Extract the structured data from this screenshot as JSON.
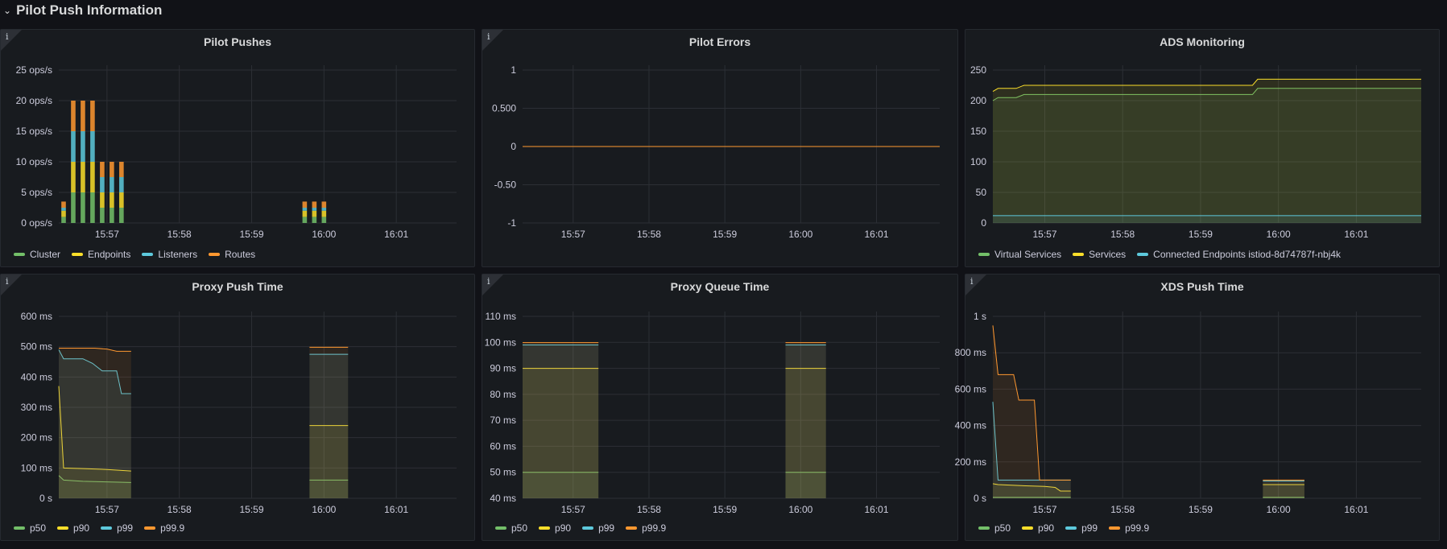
{
  "row": {
    "title": "Pilot Push Information",
    "chevron": "⌄"
  },
  "panels": [
    {
      "title": "Pilot Pushes",
      "info": "i",
      "yticks": [
        "25 ops/s",
        "20 ops/s",
        "15 ops/s",
        "10 ops/s",
        "5 ops/s",
        "0 ops/s"
      ],
      "xticks": [
        "15:57",
        "15:58",
        "15:59",
        "16:00",
        "16:01"
      ],
      "legend": [
        {
          "name": "Cluster",
          "color": "#73bf69"
        },
        {
          "name": "Endpoints",
          "color": "#fade2a"
        },
        {
          "name": "Listeners",
          "color": "#5dc9dc"
        },
        {
          "name": "Routes",
          "color": "#ff9830"
        }
      ]
    },
    {
      "title": "Pilot Errors",
      "info": "i",
      "yticks": [
        "1",
        "0.500",
        "0",
        "-0.50",
        "-1"
      ],
      "xticks": [
        "15:57",
        "15:58",
        "15:59",
        "16:00",
        "16:01"
      ],
      "legend": []
    },
    {
      "title": "ADS Monitoring",
      "info": "",
      "yticks": [
        "250",
        "200",
        "150",
        "100",
        "50",
        "0"
      ],
      "xticks": [
        "15:57",
        "15:58",
        "15:59",
        "16:00",
        "16:01"
      ],
      "legend": [
        {
          "name": "Virtual Services",
          "color": "#73bf69"
        },
        {
          "name": "Services",
          "color": "#fade2a"
        },
        {
          "name": "Connected Endpoints istiod-8d74787f-nbj4k",
          "color": "#5dc9dc"
        }
      ]
    },
    {
      "title": "Proxy Push Time",
      "info": "i",
      "yticks": [
        "600 ms",
        "500 ms",
        "400 ms",
        "300 ms",
        "200 ms",
        "100 ms",
        "0 s"
      ],
      "xticks": [
        "15:57",
        "15:58",
        "15:59",
        "16:00",
        "16:01"
      ],
      "legend": [
        {
          "name": "p50",
          "color": "#73bf69"
        },
        {
          "name": "p90",
          "color": "#fade2a"
        },
        {
          "name": "p99",
          "color": "#5dc9dc"
        },
        {
          "name": "p99.9",
          "color": "#ff9830"
        }
      ]
    },
    {
      "title": "Proxy Queue Time",
      "info": "i",
      "yticks": [
        "110 ms",
        "100 ms",
        "90 ms",
        "80 ms",
        "70 ms",
        "60 ms",
        "50 ms",
        "40 ms"
      ],
      "xticks": [
        "15:57",
        "15:58",
        "15:59",
        "16:00",
        "16:01"
      ],
      "legend": [
        {
          "name": "p50",
          "color": "#73bf69"
        },
        {
          "name": "p90",
          "color": "#fade2a"
        },
        {
          "name": "p99",
          "color": "#5dc9dc"
        },
        {
          "name": "p99.9",
          "color": "#ff9830"
        }
      ]
    },
    {
      "title": "XDS Push Time",
      "info": "i",
      "yticks": [
        "1 s",
        "800 ms",
        "600 ms",
        "400 ms",
        "200 ms",
        "0 s"
      ],
      "xticks": [
        "15:57",
        "15:58",
        "15:59",
        "16:00",
        "16:01"
      ],
      "legend": [
        {
          "name": "p50",
          "color": "#73bf69"
        },
        {
          "name": "p90",
          "color": "#fade2a"
        },
        {
          "name": "p99",
          "color": "#5dc9dc"
        },
        {
          "name": "p99.9",
          "color": "#ff9830"
        }
      ]
    }
  ],
  "chart_data": [
    {
      "type": "bar",
      "title": "Pilot Pushes",
      "ylim": [
        0,
        25
      ],
      "stack": true,
      "bars": [
        {
          "x": "15:56:24",
          "values": {
            "Cluster": 1,
            "Endpoints": 1,
            "Listeners": 0.5,
            "Routes": 1
          }
        },
        {
          "x": "15:56:32",
          "values": {
            "Cluster": 5,
            "Endpoints": 5,
            "Listeners": 5,
            "Routes": 5
          }
        },
        {
          "x": "15:56:40",
          "values": {
            "Cluster": 5,
            "Endpoints": 5,
            "Listeners": 5,
            "Routes": 5
          }
        },
        {
          "x": "15:56:48",
          "values": {
            "Cluster": 5,
            "Endpoints": 5,
            "Listeners": 5,
            "Routes": 5
          }
        },
        {
          "x": "15:56:56",
          "values": {
            "Cluster": 2.5,
            "Endpoints": 2.5,
            "Listeners": 2.5,
            "Routes": 2.5
          }
        },
        {
          "x": "15:57:04",
          "values": {
            "Cluster": 2.5,
            "Endpoints": 2.5,
            "Listeners": 2.5,
            "Routes": 2.5
          }
        },
        {
          "x": "15:57:12",
          "values": {
            "Cluster": 2.5,
            "Endpoints": 2.5,
            "Listeners": 2.5,
            "Routes": 2.5
          }
        },
        {
          "x": "15:59:44",
          "values": {
            "Cluster": 1,
            "Endpoints": 1,
            "Listeners": 0.5,
            "Routes": 1
          }
        },
        {
          "x": "15:59:52",
          "values": {
            "Cluster": 1,
            "Endpoints": 1,
            "Listeners": 0.5,
            "Routes": 1
          }
        },
        {
          "x": "16:00:00",
          "values": {
            "Cluster": 1,
            "Endpoints": 1,
            "Listeners": 0.5,
            "Routes": 1
          }
        }
      ]
    },
    {
      "type": "line",
      "title": "Pilot Errors",
      "ylim": [
        -1,
        1
      ],
      "series": [
        {
          "name": "errors",
          "color": "#ff9830",
          "points": [
            [
              "15:56:20",
              0
            ],
            [
              "16:01:50",
              0
            ]
          ]
        }
      ]
    },
    {
      "type": "area",
      "title": "ADS Monitoring",
      "ylim": [
        0,
        250
      ],
      "series": [
        {
          "name": "Virtual Services",
          "color": "#73bf69",
          "points": [
            [
              "15:56:20",
              200
            ],
            [
              "15:56:24",
              205
            ],
            [
              "15:56:38",
              205
            ],
            [
              "15:56:44",
              210
            ],
            [
              "15:59:40",
              210
            ],
            [
              "15:59:44",
              220
            ],
            [
              "16:01:50",
              220
            ]
          ]
        },
        {
          "name": "Services",
          "color": "#fade2a",
          "points": [
            [
              "15:56:20",
              215
            ],
            [
              "15:56:24",
              220
            ],
            [
              "15:56:38",
              220
            ],
            [
              "15:56:44",
              225
            ],
            [
              "15:59:40",
              225
            ],
            [
              "15:59:44",
              235
            ],
            [
              "16:01:50",
              235
            ]
          ]
        },
        {
          "name": "Connected Endpoints istiod-8d74787f-nbj4k",
          "color": "#5dc9dc",
          "points": [
            [
              "15:56:20",
              12
            ],
            [
              "16:01:50",
              12
            ]
          ]
        }
      ]
    },
    {
      "type": "area",
      "title": "Proxy Push Time",
      "ylim": [
        0,
        600
      ],
      "series": [
        {
          "name": "p50",
          "color": "#73bf69",
          "segments": [
            [
              [
                "15:56:20",
                75
              ],
              [
                "15:56:24",
                60
              ],
              [
                "15:56:40",
                56
              ],
              [
                "15:57:20",
                52
              ]
            ],
            [
              [
                "15:59:48",
                60
              ],
              [
                "16:00:20",
                60
              ]
            ]
          ]
        },
        {
          "name": "p90",
          "color": "#fade2a",
          "segments": [
            [
              [
                "15:56:20",
                370
              ],
              [
                "15:56:24",
                100
              ],
              [
                "15:56:40",
                98
              ],
              [
                "15:57:00",
                95
              ],
              [
                "15:57:20",
                90
              ]
            ],
            [
              [
                "15:59:48",
                240
              ],
              [
                "16:00:20",
                240
              ]
            ]
          ]
        },
        {
          "name": "p99",
          "color": "#5dc9dc",
          "segments": [
            [
              [
                "15:56:20",
                490
              ],
              [
                "15:56:24",
                460
              ],
              [
                "15:56:40",
                460
              ],
              [
                "15:56:48",
                445
              ],
              [
                "15:56:56",
                420
              ],
              [
                "15:57:08",
                420
              ],
              [
                "15:57:12",
                345
              ],
              [
                "15:57:20",
                345
              ]
            ],
            [
              [
                "15:59:48",
                475
              ],
              [
                "16:00:20",
                475
              ]
            ]
          ]
        },
        {
          "name": "p99.9",
          "color": "#ff9830",
          "segments": [
            [
              [
                "15:56:20",
                495
              ],
              [
                "15:56:50",
                495
              ],
              [
                "15:57:00",
                492
              ],
              [
                "15:57:08",
                485
              ],
              [
                "15:57:20",
                485
              ]
            ],
            [
              [
                "15:59:48",
                498
              ],
              [
                "16:00:20",
                498
              ]
            ]
          ]
        }
      ]
    },
    {
      "type": "area",
      "title": "Proxy Queue Time",
      "ylim": [
        40,
        110
      ],
      "series": [
        {
          "name": "p50",
          "color": "#73bf69",
          "segments": [
            [
              [
                "15:56:20",
                50
              ],
              [
                "15:57:20",
                50
              ]
            ],
            [
              [
                "15:59:48",
                50
              ],
              [
                "16:00:20",
                50
              ]
            ]
          ]
        },
        {
          "name": "p90",
          "color": "#fade2a",
          "segments": [
            [
              [
                "15:56:20",
                90
              ],
              [
                "15:57:20",
                90
              ]
            ],
            [
              [
                "15:59:48",
                90
              ],
              [
                "16:00:20",
                90
              ]
            ]
          ]
        },
        {
          "name": "p99",
          "color": "#5dc9dc",
          "segments": [
            [
              [
                "15:56:20",
                99
              ],
              [
                "15:57:20",
                99
              ]
            ],
            [
              [
                "15:59:48",
                99
              ],
              [
                "16:00:20",
                99
              ]
            ]
          ]
        },
        {
          "name": "p99.9",
          "color": "#ff9830",
          "segments": [
            [
              [
                "15:56:20",
                99.9
              ],
              [
                "15:57:20",
                99.9
              ]
            ],
            [
              [
                "15:59:48",
                99.9
              ],
              [
                "16:00:20",
                99.9
              ]
            ]
          ]
        }
      ]
    },
    {
      "type": "area",
      "title": "XDS Push Time",
      "ylim": [
        0,
        1000
      ],
      "series": [
        {
          "name": "p50",
          "color": "#73bf69",
          "segments": [
            [
              [
                "15:56:20",
                5
              ],
              [
                "15:57:20",
                5
              ]
            ],
            [
              [
                "15:59:48",
                5
              ],
              [
                "16:00:20",
                5
              ]
            ]
          ]
        },
        {
          "name": "p90",
          "color": "#fade2a",
          "segments": [
            [
              [
                "15:56:20",
                80
              ],
              [
                "15:56:24",
                75
              ],
              [
                "15:56:40",
                70
              ],
              [
                "15:57:00",
                65
              ],
              [
                "15:57:08",
                60
              ],
              [
                "15:57:12",
                40
              ],
              [
                "15:57:20",
                40
              ]
            ],
            [
              [
                "15:59:48",
                75
              ],
              [
                "16:00:20",
                75
              ]
            ]
          ]
        },
        {
          "name": "p99",
          "color": "#5dc9dc",
          "segments": [
            [
              [
                "15:56:20",
                530
              ],
              [
                "15:56:24",
                100
              ],
              [
                "15:57:20",
                100
              ]
            ],
            [
              [
                "15:59:48",
                95
              ],
              [
                "16:00:20",
                95
              ]
            ]
          ]
        },
        {
          "name": "p99.9",
          "color": "#ff9830",
          "segments": [
            [
              [
                "15:56:20",
                950
              ],
              [
                "15:56:24",
                680
              ],
              [
                "15:56:36",
                680
              ],
              [
                "15:56:40",
                540
              ],
              [
                "15:56:52",
                540
              ],
              [
                "15:56:56",
                100
              ],
              [
                "15:57:20",
                100
              ]
            ],
            [
              [
                "15:59:48",
                100
              ],
              [
                "16:00:20",
                100
              ]
            ]
          ]
        }
      ]
    }
  ]
}
